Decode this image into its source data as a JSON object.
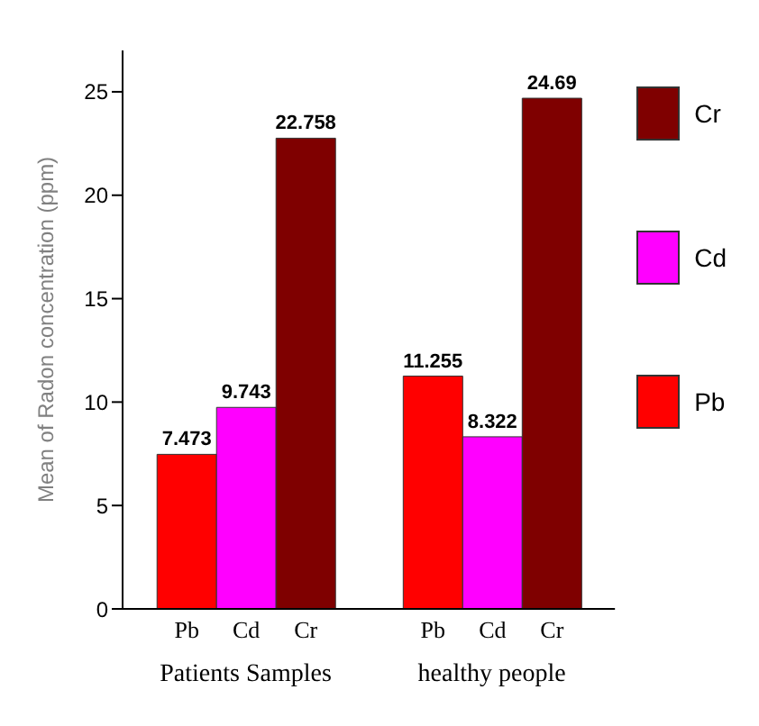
{
  "chart_data": {
    "type": "bar",
    "ylabel": "Mean of Radon concentration (ppm)",
    "categories": [
      "Patients Samples",
      "healthy people"
    ],
    "series": [
      {
        "name": "Pb",
        "color": "#ff0000",
        "values": [
          7.473,
          11.255
        ]
      },
      {
        "name": "Cd",
        "color": "#ff00ff",
        "values": [
          9.743,
          8.322
        ]
      },
      {
        "name": "Cr",
        "color": "#7f0000",
        "values": [
          22.758,
          24.69
        ]
      }
    ],
    "ylim": [
      0,
      27
    ],
    "yticks": [
      0,
      5,
      10,
      15,
      20,
      25
    ],
    "data_labels": true,
    "legend": "right",
    "grid": false
  }
}
